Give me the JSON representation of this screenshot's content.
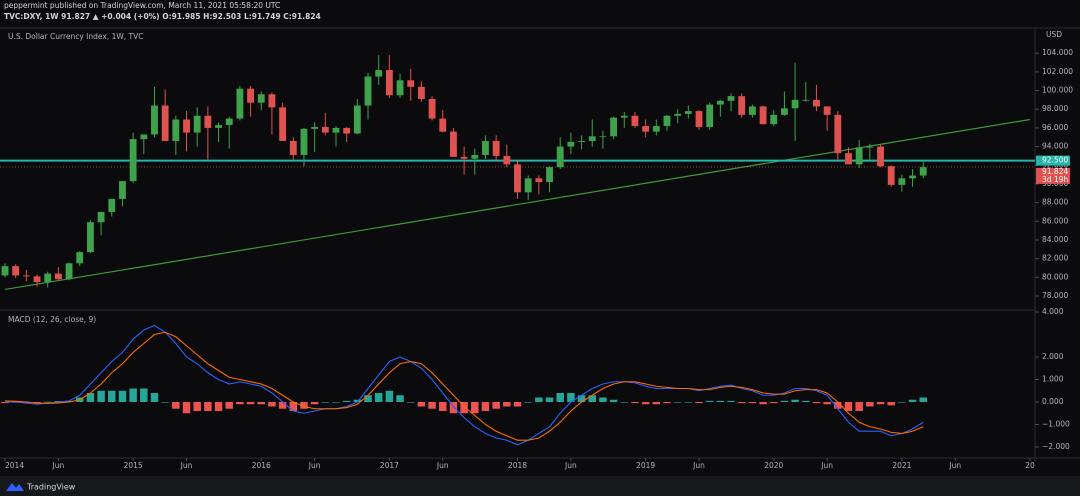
{
  "header": {
    "published": "peppermint published on TradingView.com, March 11, 2021 05:58:20 UTC",
    "symbol_line": "TVC:DXY, 1W  91.827 ▲ +0.004 (+0%) O:91.985 H:92.503 L:91.749 C:91.824"
  },
  "footer": {
    "brand": "TradingView"
  },
  "chart_data": [
    {
      "type": "candlestick",
      "title": "U.S. Dollar Currency Index, 1W, TVC",
      "currency": "USD",
      "x": [
        "2014-01",
        "2014-02",
        "2014-03",
        "2014-04",
        "2014-05",
        "2014-06",
        "2014-07",
        "2014-08",
        "2014-09",
        "2014-10",
        "2014-11",
        "2014-12",
        "2015-01",
        "2015-02",
        "2015-03",
        "2015-04",
        "2015-05",
        "2015-06",
        "2015-07",
        "2015-08",
        "2015-09",
        "2015-10",
        "2015-11",
        "2015-12",
        "2016-01",
        "2016-02",
        "2016-03",
        "2016-04",
        "2016-05",
        "2016-06",
        "2016-07",
        "2016-08",
        "2016-09",
        "2016-10",
        "2016-11",
        "2016-12",
        "2017-01",
        "2017-02",
        "2017-03",
        "2017-04",
        "2017-05",
        "2017-06",
        "2017-07",
        "2017-08",
        "2017-09",
        "2017-10",
        "2017-11",
        "2017-12",
        "2018-01",
        "2018-02",
        "2018-03",
        "2018-04",
        "2018-05",
        "2018-06",
        "2018-07",
        "2018-08",
        "2018-09",
        "2018-10",
        "2018-11",
        "2018-12",
        "2019-01",
        "2019-02",
        "2019-03",
        "2019-04",
        "2019-05",
        "2019-06",
        "2019-07",
        "2019-08",
        "2019-09",
        "2019-10",
        "2019-11",
        "2019-12",
        "2020-01",
        "2020-02",
        "2020-03",
        "2020-04",
        "2020-05",
        "2020-06",
        "2020-07",
        "2020-08",
        "2020-09",
        "2020-10",
        "2020-11",
        "2020-12",
        "2021-01",
        "2021-02",
        "2021-03"
      ],
      "open": [
        80.2,
        81.2,
        80.2,
        80.1,
        79.5,
        80.4,
        79.8,
        81.5,
        82.7,
        85.9,
        87.0,
        88.4,
        90.3,
        94.8,
        95.3,
        98.4,
        94.6,
        96.9,
        95.5,
        97.3,
        96.0,
        96.3,
        97.0,
        100.2,
        98.7,
        99.6,
        98.2,
        94.6,
        93.1,
        95.9,
        96.1,
        95.5,
        96.0,
        95.4,
        98.4,
        101.5,
        102.2,
        99.5,
        101.1,
        100.4,
        99.1,
        97.0,
        95.6,
        92.9,
        92.7,
        93.1,
        94.6,
        93.0,
        92.1,
        89.1,
        90.6,
        90.2,
        91.8,
        94.0,
        94.5,
        94.6,
        95.1,
        95.1,
        97.1,
        97.3,
        96.2,
        95.6,
        96.2,
        97.3,
        97.5,
        97.8,
        96.1,
        98.5,
        98.9,
        99.4,
        97.4,
        98.3,
        96.4,
        97.4,
        98.1,
        99.0,
        99.0,
        98.3,
        97.4,
        93.3,
        92.1,
        93.9,
        94.0,
        91.9,
        89.9,
        90.6,
        90.9
      ],
      "high": [
        81.5,
        81.4,
        80.8,
        80.3,
        80.6,
        81.1,
        81.6,
        82.8,
        86.1,
        87.0,
        88.4,
        90.3,
        95.5,
        95.3,
        100.4,
        100.1,
        97.3,
        97.8,
        98.2,
        98.3,
        96.6,
        97.2,
        100.5,
        100.5,
        99.9,
        99.8,
        98.7,
        95.0,
        96.0,
        96.6,
        97.6,
        96.2,
        96.1,
        99.1,
        101.9,
        103.8,
        103.8,
        101.8,
        102.3,
        101.0,
        99.4,
        97.9,
        96.0,
        94.0,
        93.8,
        95.2,
        95.2,
        94.2,
        92.5,
        90.9,
        90.9,
        91.9,
        95.0,
        95.5,
        95.2,
        96.9,
        95.7,
        97.2,
        97.7,
        97.7,
        96.9,
        96.9,
        97.4,
        98.0,
        98.4,
        97.9,
        98.7,
        99.0,
        99.7,
        99.7,
        98.5,
        98.4,
        97.9,
        99.9,
        103.0,
        100.9,
        100.6,
        98.3,
        97.8,
        93.9,
        94.7,
        94.3,
        94.3,
        92.0,
        91.0,
        91.6,
        92.5
      ],
      "low": [
        80.0,
        79.9,
        79.6,
        79.0,
        78.9,
        79.7,
        79.7,
        81.2,
        82.6,
        84.5,
        86.5,
        87.6,
        90.1,
        93.2,
        95.0,
        94.6,
        93.1,
        93.5,
        94.0,
        92.6,
        94.5,
        93.8,
        96.8,
        97.2,
        97.9,
        95.3,
        94.6,
        92.6,
        91.9,
        93.4,
        95.2,
        94.0,
        94.5,
        95.3,
        96.9,
        100.6,
        99.2,
        99.2,
        98.9,
        98.8,
        96.8,
        95.5,
        92.9,
        91.0,
        91.0,
        92.7,
        92.5,
        91.8,
        88.4,
        88.3,
        88.9,
        89.1,
        91.6,
        93.2,
        93.7,
        94.0,
        93.8,
        94.8,
        96.0,
        96.0,
        95.0,
        95.2,
        95.7,
        96.5,
        97.0,
        95.8,
        95.8,
        97.2,
        97.8,
        97.1,
        97.1,
        96.4,
        96.2,
        97.3,
        94.6,
        98.8,
        97.8,
        95.7,
        92.5,
        92.2,
        91.7,
        92.5,
        91.8,
        89.7,
        89.2,
        89.7,
        90.6
      ],
      "close": [
        81.2,
        80.2,
        80.1,
        79.5,
        80.4,
        79.8,
        81.5,
        82.7,
        85.9,
        87.0,
        88.4,
        90.3,
        94.8,
        95.3,
        98.4,
        94.6,
        96.9,
        95.5,
        97.3,
        96.0,
        96.3,
        97.0,
        100.2,
        98.7,
        99.6,
        98.2,
        94.6,
        93.1,
        95.9,
        96.1,
        95.5,
        96.0,
        95.4,
        98.4,
        101.5,
        102.2,
        99.5,
        101.1,
        100.4,
        99.1,
        97.0,
        95.6,
        92.9,
        92.7,
        93.1,
        94.6,
        93.0,
        92.1,
        89.1,
        90.6,
        90.2,
        91.8,
        94.0,
        94.5,
        94.6,
        95.1,
        95.1,
        97.1,
        97.3,
        96.2,
        95.6,
        96.2,
        97.3,
        97.5,
        97.8,
        96.1,
        98.5,
        98.9,
        99.4,
        97.4,
        98.3,
        96.4,
        97.4,
        98.1,
        99.0,
        99.0,
        98.3,
        97.4,
        93.3,
        92.1,
        93.9,
        94.0,
        91.9,
        89.9,
        90.6,
        90.9,
        91.8
      ],
      "up_color": "#3fa34d",
      "down_color": "#e0524f",
      "xlim": [
        "2014-01",
        "2022-01"
      ],
      "xticks": [
        {
          "value": "2014-01",
          "label": "2014"
        },
        {
          "value": "2014-06",
          "label": "Jun"
        },
        {
          "value": "2015-01",
          "label": "2015"
        },
        {
          "value": "2015-06",
          "label": "Jun"
        },
        {
          "value": "2016-01",
          "label": "2016"
        },
        {
          "value": "2016-06",
          "label": "Jun"
        },
        {
          "value": "2017-01",
          "label": "2017"
        },
        {
          "value": "2017-06",
          "label": "Jun"
        },
        {
          "value": "2018-01",
          "label": "2018"
        },
        {
          "value": "2018-06",
          "label": "Jun"
        },
        {
          "value": "2019-01",
          "label": "2019"
        },
        {
          "value": "2019-06",
          "label": "Jun"
        },
        {
          "value": "2020-01",
          "label": "2020"
        },
        {
          "value": "2020-06",
          "label": "Jun"
        },
        {
          "value": "2021-01",
          "label": "2021"
        },
        {
          "value": "2021-06",
          "label": "Jun"
        },
        {
          "value": "2022-01",
          "label": "20"
        }
      ],
      "ylim": [
        76.5,
        106.7
      ],
      "yticks": [
        {
          "value": 78,
          "label": "78.000"
        },
        {
          "value": 80,
          "label": "80.000"
        },
        {
          "value": 82,
          "label": "82.000"
        },
        {
          "value": 84,
          "label": "84.000"
        },
        {
          "value": 86,
          "label": "86.000"
        },
        {
          "value": 88,
          "label": "88.000"
        },
        {
          "value": 90,
          "label": "90.000"
        },
        {
          "value": 92,
          "label": "92.000"
        },
        {
          "value": 94,
          "label": "94.000"
        },
        {
          "value": 96,
          "label": "96.000"
        },
        {
          "value": 98,
          "label": "98.000"
        },
        {
          "value": 100,
          "label": "100.000"
        },
        {
          "value": 102,
          "label": "102.000"
        },
        {
          "value": 104,
          "label": "104.000"
        }
      ],
      "hline": {
        "value": 92.5,
        "label": "92.500",
        "color": "#26b5a8"
      },
      "trendline": {
        "x": [
          "2014-01",
          "2022-01"
        ],
        "y": [
          78.7,
          96.9
        ],
        "color": "#3f9a3a"
      },
      "last_price": {
        "value": 91.824,
        "label": "91.824",
        "color": "#e0524f"
      },
      "countdown": "3d 19h"
    },
    {
      "type": "macd",
      "title": "MACD (12, 26, close, 9)",
      "series": [
        {
          "color": "#2962ff",
          "values": [
            0.0,
            0.0,
            -0.05,
            -0.1,
            -0.05,
            0.0,
            0.05,
            0.3,
            0.8,
            1.3,
            1.8,
            2.2,
            2.8,
            3.2,
            3.4,
            3.1,
            2.6,
            2.0,
            1.7,
            1.3,
            1.0,
            0.8,
            0.9,
            0.8,
            0.7,
            0.4,
            0.0,
            -0.4,
            -0.5,
            -0.4,
            -0.3,
            -0.3,
            -0.2,
            0.0,
            0.6,
            1.2,
            1.8,
            2.0,
            1.8,
            1.5,
            1.0,
            0.4,
            -0.2,
            -0.7,
            -1.1,
            -1.4,
            -1.6,
            -1.7,
            -1.9,
            -1.7,
            -1.4,
            -1.1,
            -0.5,
            0.0,
            0.3,
            0.6,
            0.8,
            0.9,
            0.9,
            0.85,
            0.7,
            0.6,
            0.6,
            0.6,
            0.6,
            0.5,
            0.6,
            0.7,
            0.75,
            0.6,
            0.5,
            0.3,
            0.3,
            0.4,
            0.6,
            0.6,
            0.5,
            0.3,
            -0.3,
            -0.9,
            -1.3,
            -1.3,
            -1.3,
            -1.5,
            -1.4,
            -1.2,
            -0.9
          ]
        },
        {
          "color": "#ff6d00",
          "values": [
            0.05,
            0.03,
            0.0,
            -0.05,
            -0.06,
            -0.04,
            0.0,
            0.1,
            0.4,
            0.8,
            1.3,
            1.7,
            2.2,
            2.6,
            3.0,
            3.1,
            2.9,
            2.5,
            2.1,
            1.7,
            1.4,
            1.1,
            1.0,
            0.9,
            0.8,
            0.6,
            0.3,
            0.0,
            -0.2,
            -0.3,
            -0.3,
            -0.3,
            -0.25,
            -0.1,
            0.3,
            0.8,
            1.3,
            1.7,
            1.8,
            1.7,
            1.3,
            0.8,
            0.3,
            -0.2,
            -0.6,
            -1.0,
            -1.3,
            -1.5,
            -1.7,
            -1.7,
            -1.6,
            -1.3,
            -0.9,
            -0.4,
            0.0,
            0.3,
            0.6,
            0.8,
            0.9,
            0.9,
            0.8,
            0.7,
            0.65,
            0.6,
            0.6,
            0.55,
            0.55,
            0.65,
            0.7,
            0.65,
            0.55,
            0.4,
            0.35,
            0.35,
            0.5,
            0.55,
            0.55,
            0.4,
            0.0,
            -0.5,
            -0.9,
            -1.1,
            -1.2,
            -1.35,
            -1.4,
            -1.3,
            -1.1
          ]
        }
      ],
      "histogram": {
        "up_color": "#26a69a",
        "down_color": "#ef5350",
        "values": [
          -0.05,
          -0.03,
          -0.05,
          -0.05,
          0.01,
          0.04,
          0.05,
          0.2,
          0.4,
          0.5,
          0.5,
          0.5,
          0.6,
          0.6,
          0.4,
          0.0,
          -0.3,
          -0.5,
          -0.4,
          -0.4,
          -0.4,
          -0.3,
          -0.1,
          -0.1,
          -0.1,
          -0.2,
          -0.3,
          -0.4,
          -0.3,
          -0.1,
          0.0,
          0.0,
          0.05,
          0.1,
          0.3,
          0.4,
          0.5,
          0.3,
          0.0,
          -0.2,
          -0.3,
          -0.4,
          -0.5,
          -0.5,
          -0.5,
          -0.4,
          -0.3,
          -0.2,
          -0.2,
          0.0,
          0.2,
          0.2,
          0.4,
          0.4,
          0.3,
          0.3,
          0.2,
          0.1,
          0.0,
          -0.05,
          -0.1,
          -0.1,
          -0.05,
          0.0,
          0.0,
          -0.05,
          0.05,
          0.05,
          0.05,
          -0.05,
          -0.05,
          -0.1,
          -0.05,
          0.05,
          0.1,
          0.05,
          -0.05,
          -0.1,
          -0.3,
          -0.4,
          -0.4,
          -0.2,
          -0.1,
          -0.15,
          0.0,
          0.1,
          0.2
        ]
      },
      "ylim": [
        -2.49,
        4.09
      ],
      "yticks": [
        {
          "value": 4,
          "label": "4.000"
        },
        {
          "value": 2,
          "label": "2.000"
        },
        {
          "value": 1,
          "label": "1.000"
        },
        {
          "value": 0,
          "label": "0.000"
        },
        {
          "value": -1,
          "label": "−1.000"
        },
        {
          "value": -2,
          "label": "−2.000"
        }
      ]
    }
  ]
}
